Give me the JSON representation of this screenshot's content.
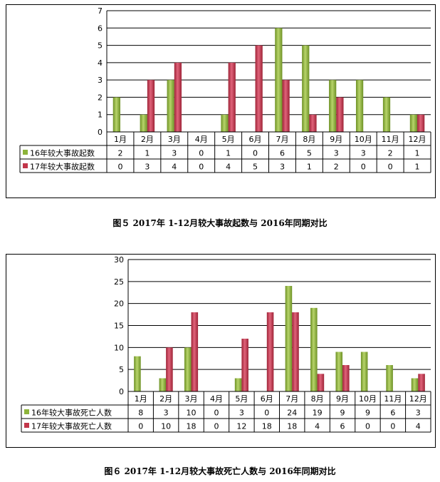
{
  "chart_data": [
    {
      "type": "bar",
      "categories": [
        "1月",
        "2月",
        "3月",
        "4月",
        "5月",
        "6月",
        "7月",
        "8月",
        "9月",
        "10月",
        "11月",
        "12月"
      ],
      "series": [
        {
          "name": "16年较大事故起数",
          "color": "#8db43a",
          "values": [
            2,
            1,
            3,
            0,
            1,
            0,
            6,
            5,
            3,
            3,
            2,
            1
          ]
        },
        {
          "name": "17年较大事故起数",
          "color": "#c2364a",
          "values": [
            0,
            3,
            4,
            0,
            4,
            5,
            3,
            1,
            2,
            0,
            0,
            1
          ]
        }
      ],
      "ylim": [
        0,
        7
      ],
      "yticks": [
        0,
        1,
        2,
        3,
        4,
        5,
        6,
        7
      ],
      "grid": true,
      "legend": "data-table",
      "title": "图５  2017年 1-12月较大事故起数与 2016年同期对比"
    },
    {
      "type": "bar",
      "categories": [
        "1月",
        "2月",
        "3月",
        "4月",
        "5月",
        "6月",
        "7月",
        "8月",
        "9月",
        "10月",
        "11月",
        "12月"
      ],
      "series": [
        {
          "name": "16年较大事故死亡人数",
          "color": "#8db43a",
          "values": [
            8,
            3,
            10,
            0,
            3,
            0,
            24,
            19,
            9,
            9,
            6,
            3
          ]
        },
        {
          "name": "17年较大事故死亡人数",
          "color": "#c2364a",
          "values": [
            0,
            10,
            18,
            0,
            12,
            18,
            18,
            4,
            6,
            0,
            0,
            4
          ]
        }
      ],
      "ylim": [
        0,
        30
      ],
      "yticks": [
        0,
        5,
        10,
        15,
        20,
        25,
        30
      ],
      "grid": true,
      "legend": "data-table",
      "title": "图６  2017年 1-12月较大事故死亡人数与 2016年同期对比"
    }
  ]
}
